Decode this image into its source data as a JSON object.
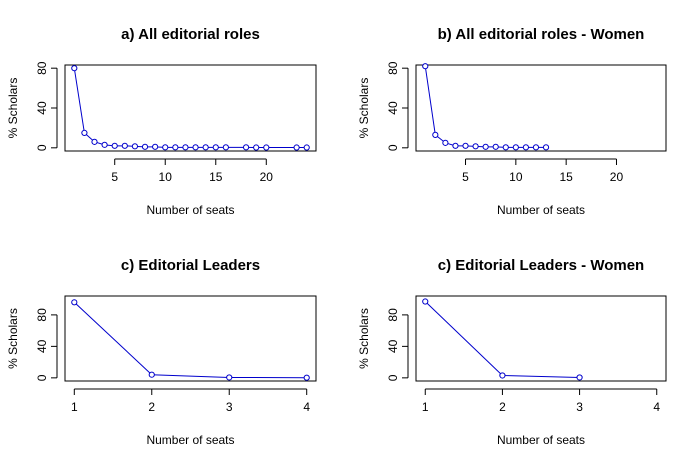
{
  "chart_data": [
    {
      "type": "line",
      "title": "a) All editorial roles",
      "xlabel": "Number of seats",
      "ylabel": "% Scholars",
      "xlim": [
        1,
        24
      ],
      "ylim": [
        0,
        80
      ],
      "xticks": [
        5,
        10,
        15,
        20
      ],
      "yticks": [
        0,
        40,
        80
      ],
      "line_color": "#0000cc",
      "marker": "open-circle",
      "grid": false,
      "series": [
        {
          "x": [
            1,
            2,
            3,
            4,
            5,
            6,
            7,
            8,
            9,
            10,
            11,
            12,
            13,
            14,
            15,
            16,
            18,
            19,
            20,
            23,
            24
          ],
          "values": [
            80,
            15,
            6,
            3,
            2,
            2,
            1.5,
            1,
            1,
            0.5,
            0.5,
            0.5,
            0.5,
            0.5,
            0.5,
            0.5,
            0.5,
            0.3,
            0.3,
            0.3,
            0.3
          ]
        }
      ]
    },
    {
      "type": "line",
      "title": "b) All editorial roles - Women",
      "xlabel": "Number of seats",
      "ylabel": "% Scholars",
      "xlim": [
        1,
        24
      ],
      "ylim": [
        0,
        80
      ],
      "xticks": [
        5,
        10,
        15,
        20
      ],
      "yticks": [
        0,
        40,
        80
      ],
      "line_color": "#0000cc",
      "marker": "open-circle",
      "grid": false,
      "series": [
        {
          "x": [
            1,
            2,
            3,
            4,
            5,
            6,
            7,
            8,
            9,
            10,
            11,
            12,
            13
          ],
          "values": [
            82,
            13,
            5,
            2,
            2,
            1.5,
            1,
            1,
            0.5,
            0.5,
            0.5,
            0.5,
            0.5
          ]
        }
      ]
    },
    {
      "type": "line",
      "title": "c) Editorial Leaders",
      "xlabel": "Number of seats",
      "ylabel": "% Scholars",
      "xlim": [
        1,
        4
      ],
      "ylim": [
        0,
        100
      ],
      "xticks": [
        1,
        2,
        3,
        4
      ],
      "yticks": [
        0,
        40,
        80
      ],
      "line_color": "#0000cc",
      "marker": "open-circle",
      "grid": false,
      "series": [
        {
          "x": [
            1,
            2,
            3,
            4
          ],
          "values": [
            96,
            4,
            0.5,
            0.2
          ]
        }
      ]
    },
    {
      "type": "line",
      "title": "c) Editorial Leaders - Women",
      "xlabel": "Number of seats",
      "ylabel": "% Scholars",
      "xlim": [
        1,
        4
      ],
      "ylim": [
        0,
        100
      ],
      "xticks": [
        1,
        2,
        3,
        4
      ],
      "yticks": [
        0,
        40,
        80
      ],
      "line_color": "#0000cc",
      "marker": "open-circle",
      "grid": false,
      "series": [
        {
          "x": [
            1,
            2,
            3
          ],
          "values": [
            97,
            3,
            0.5
          ]
        }
      ]
    }
  ]
}
